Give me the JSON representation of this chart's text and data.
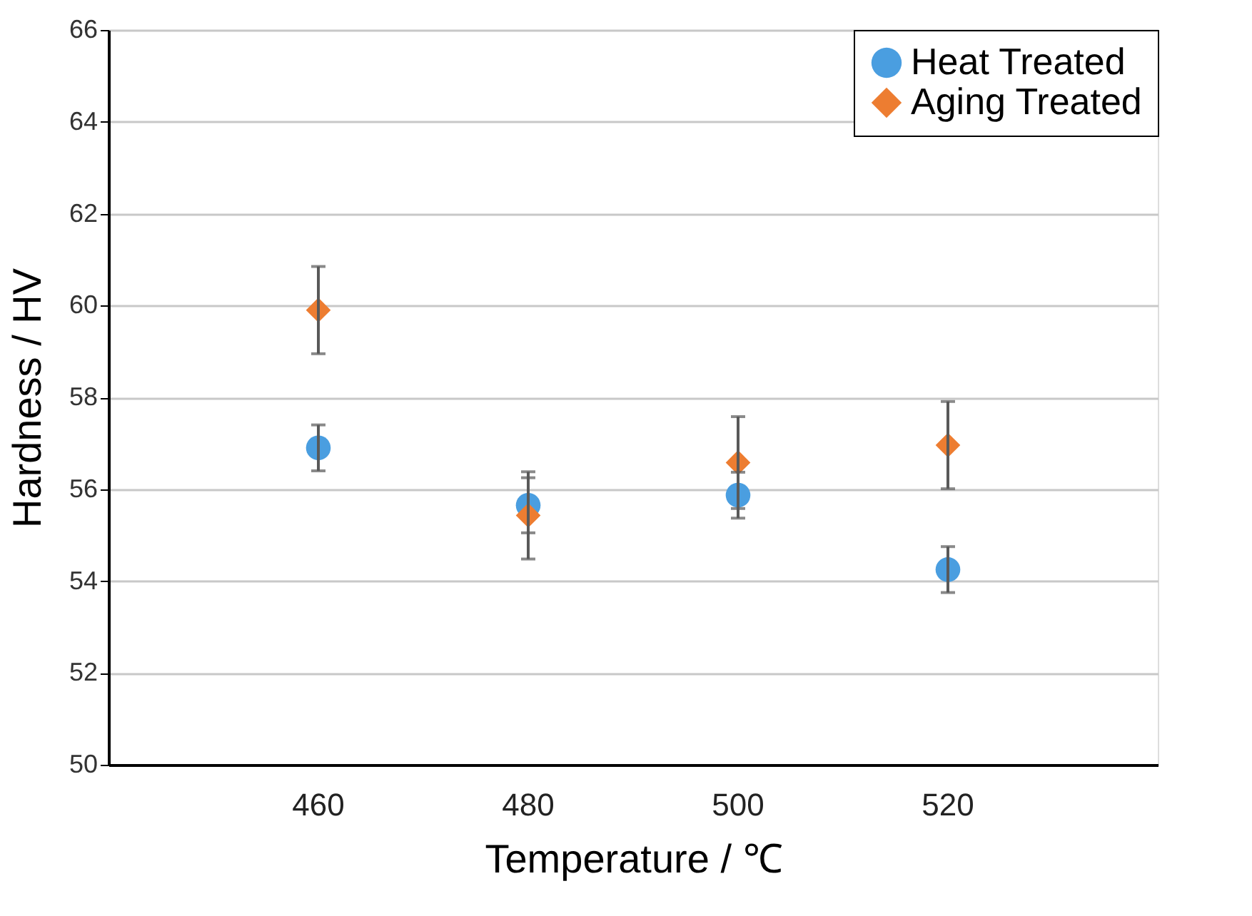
{
  "chart_data": {
    "type": "scatter",
    "xlabel": "Temperature / ℃",
    "ylabel": "Hardness / HV",
    "categories": [
      "460",
      "480",
      "500",
      "520"
    ],
    "series": [
      {
        "name": "Heat Treated",
        "color": "#4a9ee0",
        "marker": "circle",
        "values": [
          56.9,
          55.65,
          55.87,
          54.25
        ],
        "errors": [
          0.5,
          0.6,
          0.5,
          0.5
        ]
      },
      {
        "name": "Aging Treated",
        "color": "#ed7d31",
        "marker": "diamond",
        "values": [
          59.9,
          55.43,
          56.58,
          56.96
        ],
        "errors": [
          0.95,
          0.95,
          1.0,
          0.95
        ]
      }
    ],
    "ylim": [
      50,
      66
    ],
    "yticks": [
      50,
      52,
      54,
      56,
      58,
      60,
      62,
      64,
      66
    ],
    "grid": "y",
    "legend": "top right"
  }
}
